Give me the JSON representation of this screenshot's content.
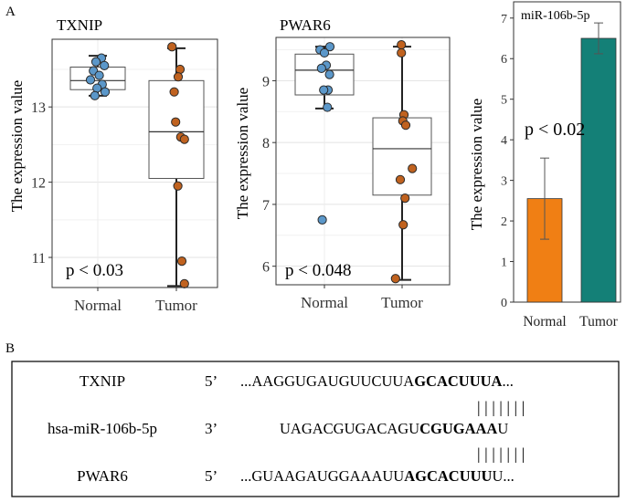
{
  "panel_labels": {
    "a": "A",
    "b": "B"
  },
  "chart_data": [
    {
      "type": "boxplot",
      "title": "TXNIP",
      "ylabel": "The expression value",
      "categories": [
        "Normal",
        "Tumor"
      ],
      "ylim": [
        10.6,
        13.9
      ],
      "yticks": [
        11,
        12,
        13
      ],
      "annotation": "p < 0.03",
      "boxes": [
        {
          "group": "Normal",
          "whisker_low": 13.15,
          "q1": 13.23,
          "median": 13.35,
          "q3": 13.53,
          "whisker_high": 13.68
        },
        {
          "group": "Tumor",
          "whisker_low": 10.62,
          "q1": 12.05,
          "median": 12.67,
          "q3": 13.35,
          "whisker_high": 13.78
        }
      ],
      "points": [
        {
          "group": "Normal",
          "values": [
            13.65,
            13.6,
            13.55,
            13.48,
            13.42,
            13.36,
            13.3,
            13.25,
            13.2,
            13.15
          ],
          "jitter": [
            0.1,
            -0.05,
            0.18,
            -0.12,
            0.04,
            -0.2,
            0.12,
            -0.02,
            0.2,
            -0.08
          ],
          "color": "#5b97c9"
        },
        {
          "group": "Tumor",
          "values": [
            13.8,
            13.5,
            13.4,
            13.2,
            12.8,
            12.6,
            12.57,
            11.95,
            10.95,
            10.65
          ],
          "jitter": [
            -0.12,
            0.1,
            0.05,
            -0.06,
            -0.02,
            0.12,
            0.22,
            0.04,
            0.15,
            0.22
          ],
          "color": "#c0621f"
        }
      ]
    },
    {
      "type": "boxplot",
      "title": "PWAR6",
      "ylabel": "The expression value",
      "categories": [
        "Normal",
        "Tumor"
      ],
      "ylim": [
        5.7,
        9.7
      ],
      "yticks": [
        6,
        7,
        8,
        9
      ],
      "annotation": "p < 0.048",
      "boxes": [
        {
          "group": "Normal",
          "whisker_low": 8.55,
          "q1": 8.77,
          "median": 9.17,
          "q3": 9.43,
          "whisker_high": 9.55
        },
        {
          "group": "Tumor",
          "whisker_low": 5.78,
          "q1": 7.15,
          "median": 7.9,
          "q3": 8.4,
          "whisker_high": 9.55
        }
      ],
      "points": [
        {
          "group": "Normal",
          "values": [
            9.55,
            9.5,
            9.45,
            9.25,
            9.2,
            9.1,
            8.85,
            8.85,
            8.57,
            6.75
          ],
          "jitter": [
            0.15,
            -0.12,
            0.0,
            0.05,
            -0.08,
            0.14,
            0.1,
            -0.02,
            0.08,
            -0.06
          ],
          "color": "#5b97c9"
        },
        {
          "group": "Tumor",
          "values": [
            9.58,
            9.45,
            8.45,
            8.35,
            8.28,
            7.58,
            7.4,
            7.1,
            6.67,
            5.8
          ],
          "jitter": [
            -0.02,
            -0.02,
            0.05,
            0.02,
            0.1,
            0.28,
            -0.05,
            0.08,
            0.03,
            -0.18
          ],
          "color": "#c0621f"
        }
      ]
    },
    {
      "type": "bar",
      "title": "miR-106b-5p",
      "ylabel": "The expression value",
      "categories": [
        "Normal",
        "Tumor"
      ],
      "values": [
        2.55,
        6.5
      ],
      "error_low": [
        1.55,
        6.12
      ],
      "error_high": [
        3.55,
        6.88
      ],
      "colors": [
        "#f07f14",
        "#148077"
      ],
      "ylim": [
        0,
        7.4
      ],
      "yticks": [
        0,
        1,
        2,
        3,
        4,
        5,
        6,
        7
      ],
      "annotation": "p < 0.02"
    }
  ],
  "alignment": {
    "rows": [
      {
        "name": "TXNIP",
        "end": "5’",
        "segments": [
          {
            "t": "...AAGGUGAUGUUCUUA",
            "b": false
          },
          {
            "t": "GCACUUUA",
            "b": true
          },
          {
            "t": "...",
            "b": false
          }
        ]
      },
      {
        "name": "hsa-miR-106b-5p",
        "end": "3’",
        "segments": [
          {
            "t": "UAGACGUGACAGU",
            "b": false
          },
          {
            "t": "CGUGAAA",
            "b": true
          },
          {
            "t": "U",
            "b": false
          }
        ]
      },
      {
        "name": "PWAR6",
        "end": "5’",
        "segments": [
          {
            "t": "...GUAAGAUGGAAAUU",
            "b": false
          },
          {
            "t": "AGCACUUU",
            "b": true
          },
          {
            "t": "U...",
            "b": false
          }
        ]
      }
    ],
    "pairing_bars": [
      "| | | | | | |",
      "| | | | | | |"
    ]
  }
}
